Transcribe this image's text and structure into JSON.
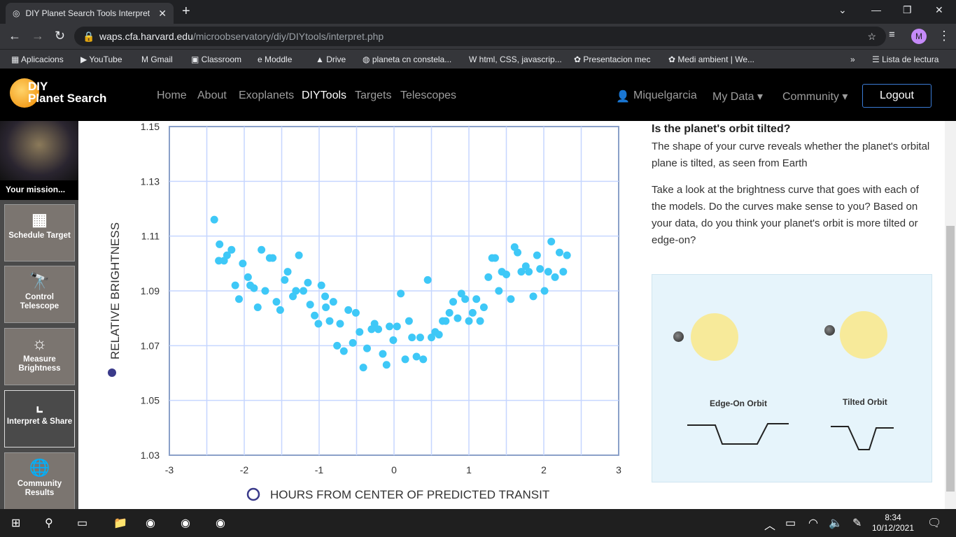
{
  "browser": {
    "tab_title": "DIY Planet Search Tools Interpret",
    "url_host": "waps.cfa.harvard.edu",
    "url_path": "/microobservatory/diy/DIYtools/interpret.php",
    "profile_initial": "M",
    "bookmarks": [
      "Aplicacions",
      "YouTube",
      "Gmail",
      "Classroom",
      "Moddle",
      "Drive",
      "planeta cn constela...",
      "html, CSS, javascrip...",
      "Presentacion mec",
      "Medi ambient | We..."
    ],
    "reading_list": "Lista de lectura"
  },
  "site": {
    "logo_line1": "DIY",
    "logo_line2": "Planet Search",
    "nav": [
      "Home",
      "About",
      "Exoplanets",
      "DIYTools",
      "Targets",
      "Telescopes"
    ],
    "active_nav": "DIYTools",
    "user": "Miquelgarcia",
    "my_data": "My Data",
    "community": "Community",
    "logout": "Logout"
  },
  "sidebar": {
    "mission": "Your mission...",
    "items": [
      {
        "label": "Schedule Target",
        "icon": "calendar-icon"
      },
      {
        "label": "Control Telescope",
        "icon": "telescope-icon"
      },
      {
        "label": "Measure Brightness",
        "icon": "sun-icon"
      },
      {
        "label": "Interpret & Share",
        "icon": "chart-icon",
        "active": true
      },
      {
        "label": "Community Results",
        "icon": "globe-icon"
      }
    ]
  },
  "content": {
    "heading": "Is the planet's orbit tilted?",
    "para1": "The shape of your curve reveals whether the planet's orbital plane is tilted, as seen from Earth",
    "para2": "Take a look at the brightness curve that goes with each of the models. Do the curves make sense to you? Based on your data, do you think your planet's orbit is more tilted or edge-on?",
    "model_edge": "Edge-On Orbit",
    "model_tilted": "Tilted Orbit"
  },
  "chart_data": {
    "type": "scatter",
    "xlabel": "HOURS FROM CENTER OF PREDICTED TRANSIT",
    "ylabel": "RELATIVE BRIGHTNESS",
    "xlim": [
      -3,
      3
    ],
    "ylim": [
      1.03,
      1.15
    ],
    "xticks": [
      "-3",
      "-2",
      "-1",
      "0",
      "1",
      "2",
      "3"
    ],
    "yticks": [
      "1.15",
      "1.13",
      "1.11",
      "1.09",
      "1.07",
      "1.05",
      "1.03"
    ],
    "grid": true,
    "point_color": "#3ec8f7",
    "points": [
      [
        -2.4,
        1.116
      ],
      [
        -2.33,
        1.107
      ],
      [
        -2.34,
        1.101
      ],
      [
        -2.27,
        1.101
      ],
      [
        -2.23,
        1.103
      ],
      [
        -2.17,
        1.105
      ],
      [
        -2.12,
        1.092
      ],
      [
        -2.07,
        1.087
      ],
      [
        -2.02,
        1.1
      ],
      [
        -1.95,
        1.095
      ],
      [
        -1.92,
        1.092
      ],
      [
        -1.87,
        1.091
      ],
      [
        -1.82,
        1.084
      ],
      [
        -1.77,
        1.105
      ],
      [
        -1.72,
        1.09
      ],
      [
        -1.66,
        1.102
      ],
      [
        -1.62,
        1.102
      ],
      [
        -1.57,
        1.086
      ],
      [
        -1.52,
        1.083
      ],
      [
        -1.46,
        1.094
      ],
      [
        -1.42,
        1.097
      ],
      [
        -1.35,
        1.088
      ],
      [
        -1.31,
        1.09
      ],
      [
        -1.27,
        1.103
      ],
      [
        -1.21,
        1.09
      ],
      [
        -1.15,
        1.093
      ],
      [
        -1.12,
        1.085
      ],
      [
        -1.06,
        1.081
      ],
      [
        -1.01,
        1.078
      ],
      [
        -0.97,
        1.092
      ],
      [
        -0.92,
        1.088
      ],
      [
        -0.91,
        1.084
      ],
      [
        -0.86,
        1.079
      ],
      [
        -0.81,
        1.086
      ],
      [
        -0.76,
        1.07
      ],
      [
        -0.72,
        1.078
      ],
      [
        -0.67,
        1.068
      ],
      [
        -0.61,
        1.083
      ],
      [
        -0.55,
        1.071
      ],
      [
        -0.51,
        1.082
      ],
      [
        -0.46,
        1.075
      ],
      [
        -0.41,
        1.062
      ],
      [
        -0.36,
        1.069
      ],
      [
        -0.3,
        1.076
      ],
      [
        -0.26,
        1.078
      ],
      [
        -0.21,
        1.076
      ],
      [
        -0.15,
        1.067
      ],
      [
        -0.1,
        1.063
      ],
      [
        -0.06,
        1.077
      ],
      [
        -0.01,
        1.072
      ],
      [
        0.04,
        1.077
      ],
      [
        0.09,
        1.089
      ],
      [
        0.15,
        1.065
      ],
      [
        0.2,
        1.079
      ],
      [
        0.24,
        1.073
      ],
      [
        0.3,
        1.066
      ],
      [
        0.35,
        1.073
      ],
      [
        0.39,
        1.065
      ],
      [
        0.45,
        1.094
      ],
      [
        0.5,
        1.073
      ],
      [
        0.55,
        1.075
      ],
      [
        0.6,
        1.074
      ],
      [
        0.65,
        1.079
      ],
      [
        0.69,
        1.079
      ],
      [
        0.74,
        1.082
      ],
      [
        0.79,
        1.086
      ],
      [
        0.85,
        1.08
      ],
      [
        0.9,
        1.089
      ],
      [
        0.95,
        1.087
      ],
      [
        1.0,
        1.079
      ],
      [
        1.05,
        1.082
      ],
      [
        1.1,
        1.087
      ],
      [
        1.15,
        1.079
      ],
      [
        1.2,
        1.084
      ],
      [
        1.26,
        1.095
      ],
      [
        1.31,
        1.102
      ],
      [
        1.35,
        1.102
      ],
      [
        1.4,
        1.09
      ],
      [
        1.44,
        1.097
      ],
      [
        1.5,
        1.096
      ],
      [
        1.56,
        1.087
      ],
      [
        1.61,
        1.106
      ],
      [
        1.65,
        1.104
      ],
      [
        1.7,
        1.097
      ],
      [
        1.76,
        1.099
      ],
      [
        1.8,
        1.097
      ],
      [
        1.86,
        1.088
      ],
      [
        1.91,
        1.103
      ],
      [
        1.95,
        1.098
      ],
      [
        2.01,
        1.09
      ],
      [
        2.06,
        1.097
      ],
      [
        2.1,
        1.108
      ],
      [
        2.15,
        1.095
      ],
      [
        2.21,
        1.104
      ],
      [
        2.26,
        1.097
      ],
      [
        2.31,
        1.103
      ]
    ]
  },
  "taskbar": {
    "time": "8:34",
    "date": "10/12/2021"
  }
}
